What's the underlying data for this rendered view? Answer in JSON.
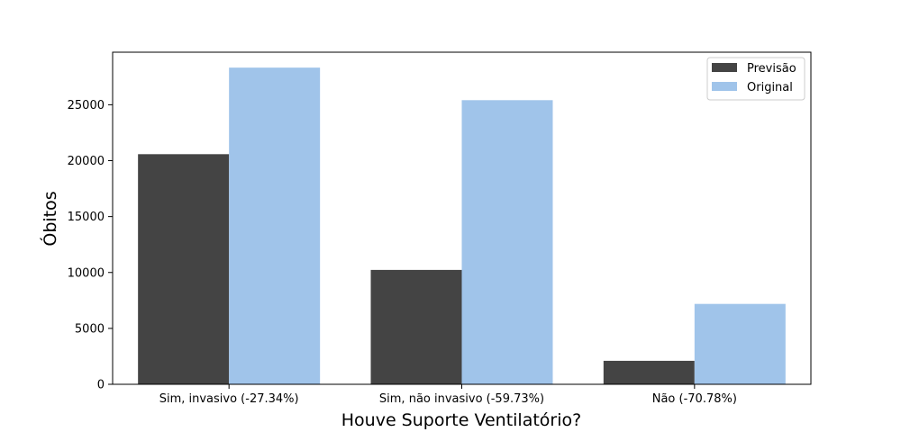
{
  "chart_data": {
    "type": "bar",
    "title": "",
    "xlabel": "Houve Suporte Ventilatório?",
    "ylabel": "Óbitos",
    "categories": [
      "Sim, invasivo (-27.34%)",
      "Sim, não invasivo (-59.73%)",
      "Não (-70.78%)"
    ],
    "series": [
      {
        "name": "Previsão",
        "color": "#444444",
        "values": [
          20580,
          10230,
          2100
        ]
      },
      {
        "name": "Original",
        "color": "#a0c4ea",
        "values": [
          28320,
          25410,
          7190
        ]
      }
    ],
    "ylim": [
      0,
      29700
    ],
    "yticks": [
      0,
      5000,
      10000,
      15000,
      20000,
      25000
    ],
    "grid": false,
    "legend": "top-right"
  }
}
